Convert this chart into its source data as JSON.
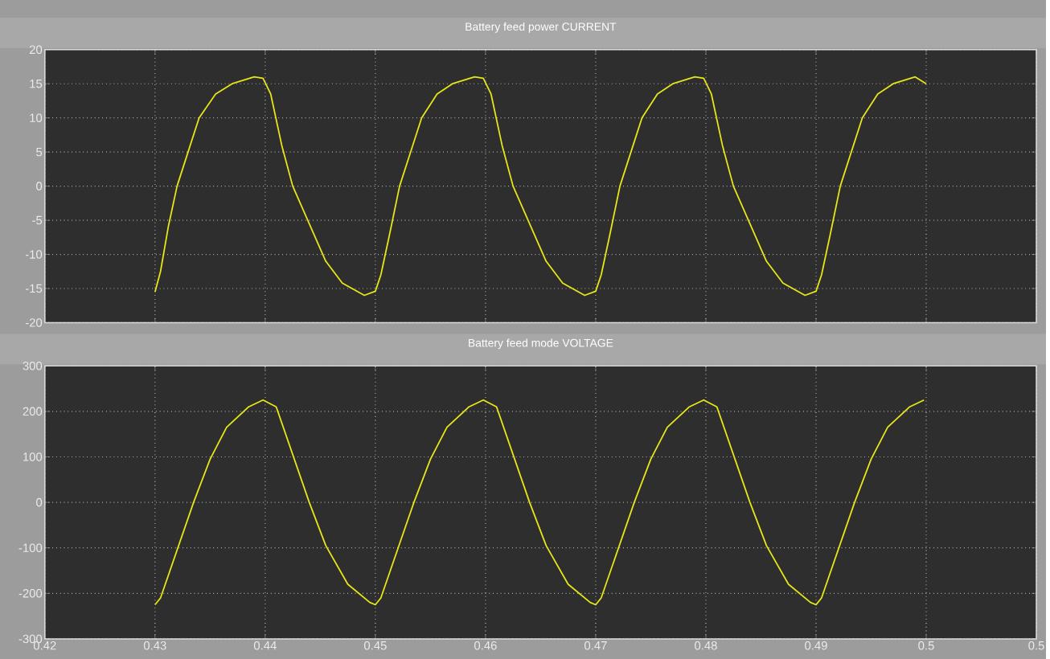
{
  "chart_data": [
    {
      "type": "line",
      "title": "Battery feed power CURRENT",
      "xlim": [
        0.42,
        0.51
      ],
      "ylim": [
        -20,
        20
      ],
      "yticks": [
        -20,
        -15,
        -10,
        -5,
        0,
        5,
        10,
        15,
        20
      ],
      "xticks": [
        0.42,
        0.43,
        0.44,
        0.45,
        0.46,
        0.47,
        0.48,
        0.49,
        0.5,
        {
          "value": 0.51,
          "label": null
        }
      ],
      "tick_labels": "y",
      "grid": true,
      "marker": "none",
      "line_style": "solid",
      "series": [
        {
          "color": "#e6e619",
          "x": [
            0.43,
            0.4305,
            0.4312,
            0.432,
            0.433,
            0.434,
            0.4355,
            0.437,
            0.439,
            0.4398,
            0.4405,
            0.4415,
            0.4425,
            0.444,
            0.4455,
            0.447,
            0.449,
            0.45,
            0.4505,
            0.4513,
            0.4522,
            0.4532,
            0.4542,
            0.4556,
            0.457,
            0.459,
            0.4598,
            0.4605,
            0.4615,
            0.4625,
            0.464,
            0.4655,
            0.467,
            0.469,
            0.47,
            0.4705,
            0.4713,
            0.4722,
            0.4732,
            0.4742,
            0.4756,
            0.477,
            0.479,
            0.4798,
            0.4805,
            0.4815,
            0.4825,
            0.484,
            0.4855,
            0.487,
            0.489,
            0.49,
            0.4905,
            0.4913,
            0.4922,
            0.4932,
            0.4942,
            0.4956,
            0.497,
            0.499,
            0.5
          ],
          "values": [
            -15.5,
            -12.5,
            -6,
            0,
            5,
            10,
            13.5,
            15,
            16,
            15.8,
            13.5,
            6,
            0,
            -5.5,
            -11,
            -14.2,
            -16,
            -15.4,
            -13,
            -7,
            0,
            5,
            10,
            13.5,
            15,
            16,
            15.8,
            13.5,
            6,
            0,
            -5.5,
            -11,
            -14.2,
            -16,
            -15.4,
            -13,
            -7,
            0,
            5,
            10,
            13.5,
            15,
            16,
            15.8,
            13.5,
            6,
            0,
            -5.5,
            -11,
            -14.2,
            -16,
            -15.4,
            -13,
            -7,
            0,
            5,
            10,
            13.5,
            15,
            16,
            15
          ]
        }
      ]
    },
    {
      "type": "line",
      "title": "Battery feed mode VOLTAGE",
      "xlim": [
        0.42,
        0.51
      ],
      "ylim": [
        -300,
        300
      ],
      "yticks": [
        -300,
        -200,
        -100,
        0,
        100,
        200,
        300
      ],
      "xticks": [
        0.42,
        0.43,
        0.44,
        0.45,
        0.46,
        0.47,
        0.48,
        0.49,
        0.5,
        {
          "value": 0.51,
          "label": "0.5"
        }
      ],
      "grid": true,
      "marker": "none",
      "line_style": "solid",
      "series": [
        {
          "color": "#e6e619",
          "x": [
            0.43,
            0.4305,
            0.432,
            0.4335,
            0.435,
            0.4365,
            0.4385,
            0.4398,
            0.441,
            0.4425,
            0.444,
            0.4455,
            0.4475,
            0.4495,
            0.45,
            0.4505,
            0.452,
            0.4535,
            0.455,
            0.4565,
            0.4585,
            0.4598,
            0.461,
            0.4625,
            0.464,
            0.4655,
            0.4675,
            0.4695,
            0.47,
            0.4705,
            0.472,
            0.4735,
            0.475,
            0.4765,
            0.4785,
            0.4798,
            0.481,
            0.4825,
            0.484,
            0.4855,
            0.4875,
            0.4895,
            0.49,
            0.4905,
            0.492,
            0.4935,
            0.495,
            0.4965,
            0.4985,
            0.4998
          ],
          "values": [
            -225,
            -210,
            -105,
            0,
            95,
            165,
            210,
            225,
            210,
            105,
            0,
            -95,
            -180,
            -220,
            -225,
            -210,
            -105,
            0,
            95,
            165,
            210,
            225,
            210,
            105,
            0,
            -95,
            -180,
            -220,
            -225,
            -210,
            -105,
            0,
            95,
            165,
            210,
            225,
            210,
            105,
            0,
            -95,
            -180,
            -220,
            -225,
            -210,
            -105,
            0,
            95,
            165,
            210,
            225
          ]
        }
      ]
    }
  ]
}
